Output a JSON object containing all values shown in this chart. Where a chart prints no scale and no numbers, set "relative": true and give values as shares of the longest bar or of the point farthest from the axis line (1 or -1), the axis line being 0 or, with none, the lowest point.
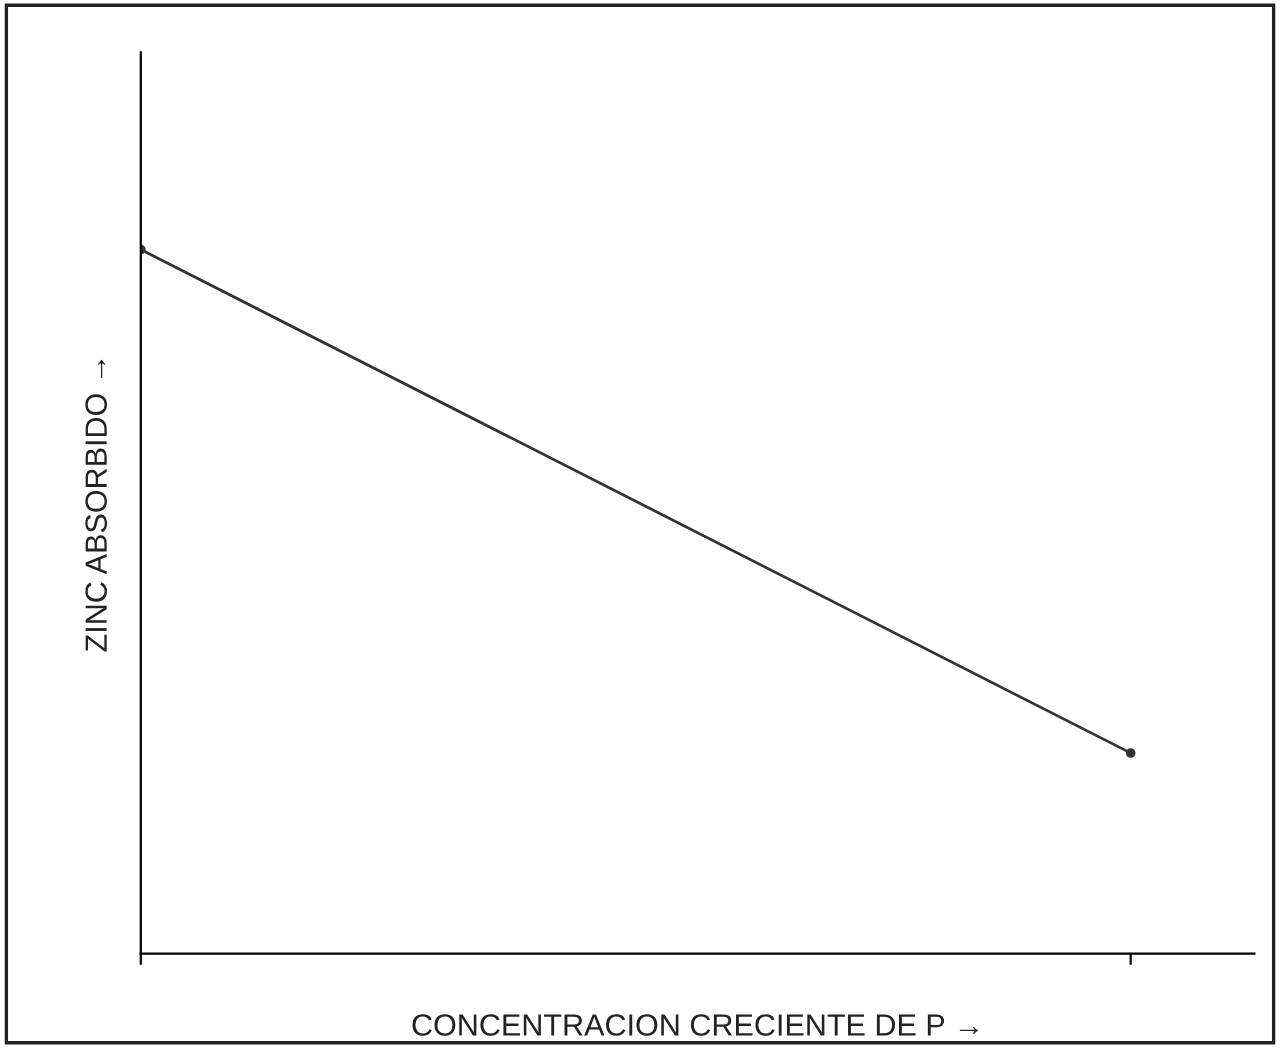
{
  "chart_data": {
    "type": "line",
    "relative": true,
    "xlabel": "CONCENTRACION CRECIENTE DE P →",
    "ylabel": "ZINC ABSORBIDO →",
    "categories": [
      null,
      null
    ],
    "series": [
      {
        "color": "#333333",
        "values": [
          1,
          0.285
        ]
      }
    ],
    "marker": "circle",
    "line_style": "solid",
    "grid": false,
    "legend": false
  }
}
